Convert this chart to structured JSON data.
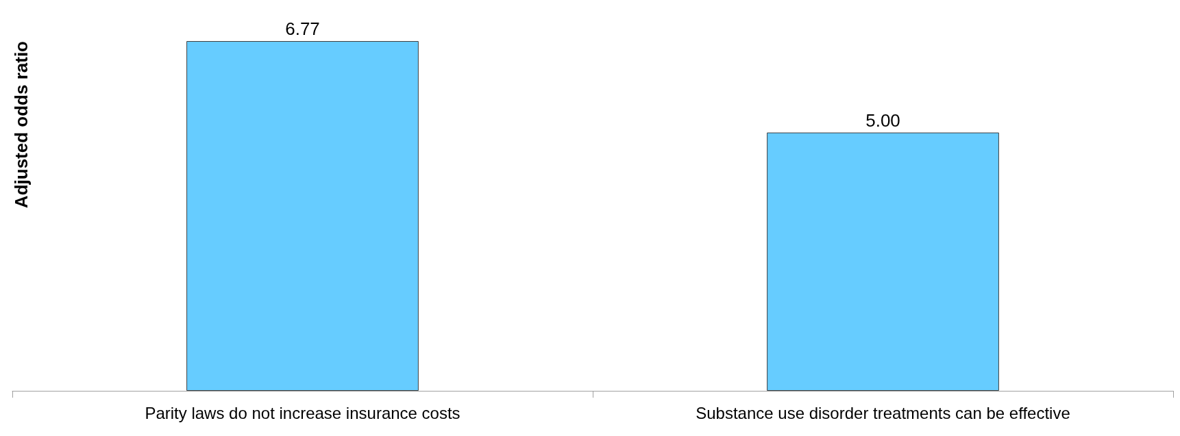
{
  "chart_data": {
    "type": "bar",
    "ylabel": "Adjusted odds ratio",
    "categories": [
      "Parity laws do not increase insurance costs",
      "Substance use disorder treatments can be effective"
    ],
    "values": [
      6.77,
      5.0
    ],
    "value_labels": [
      "6.77",
      "5.00"
    ],
    "color": "#66ccff"
  }
}
